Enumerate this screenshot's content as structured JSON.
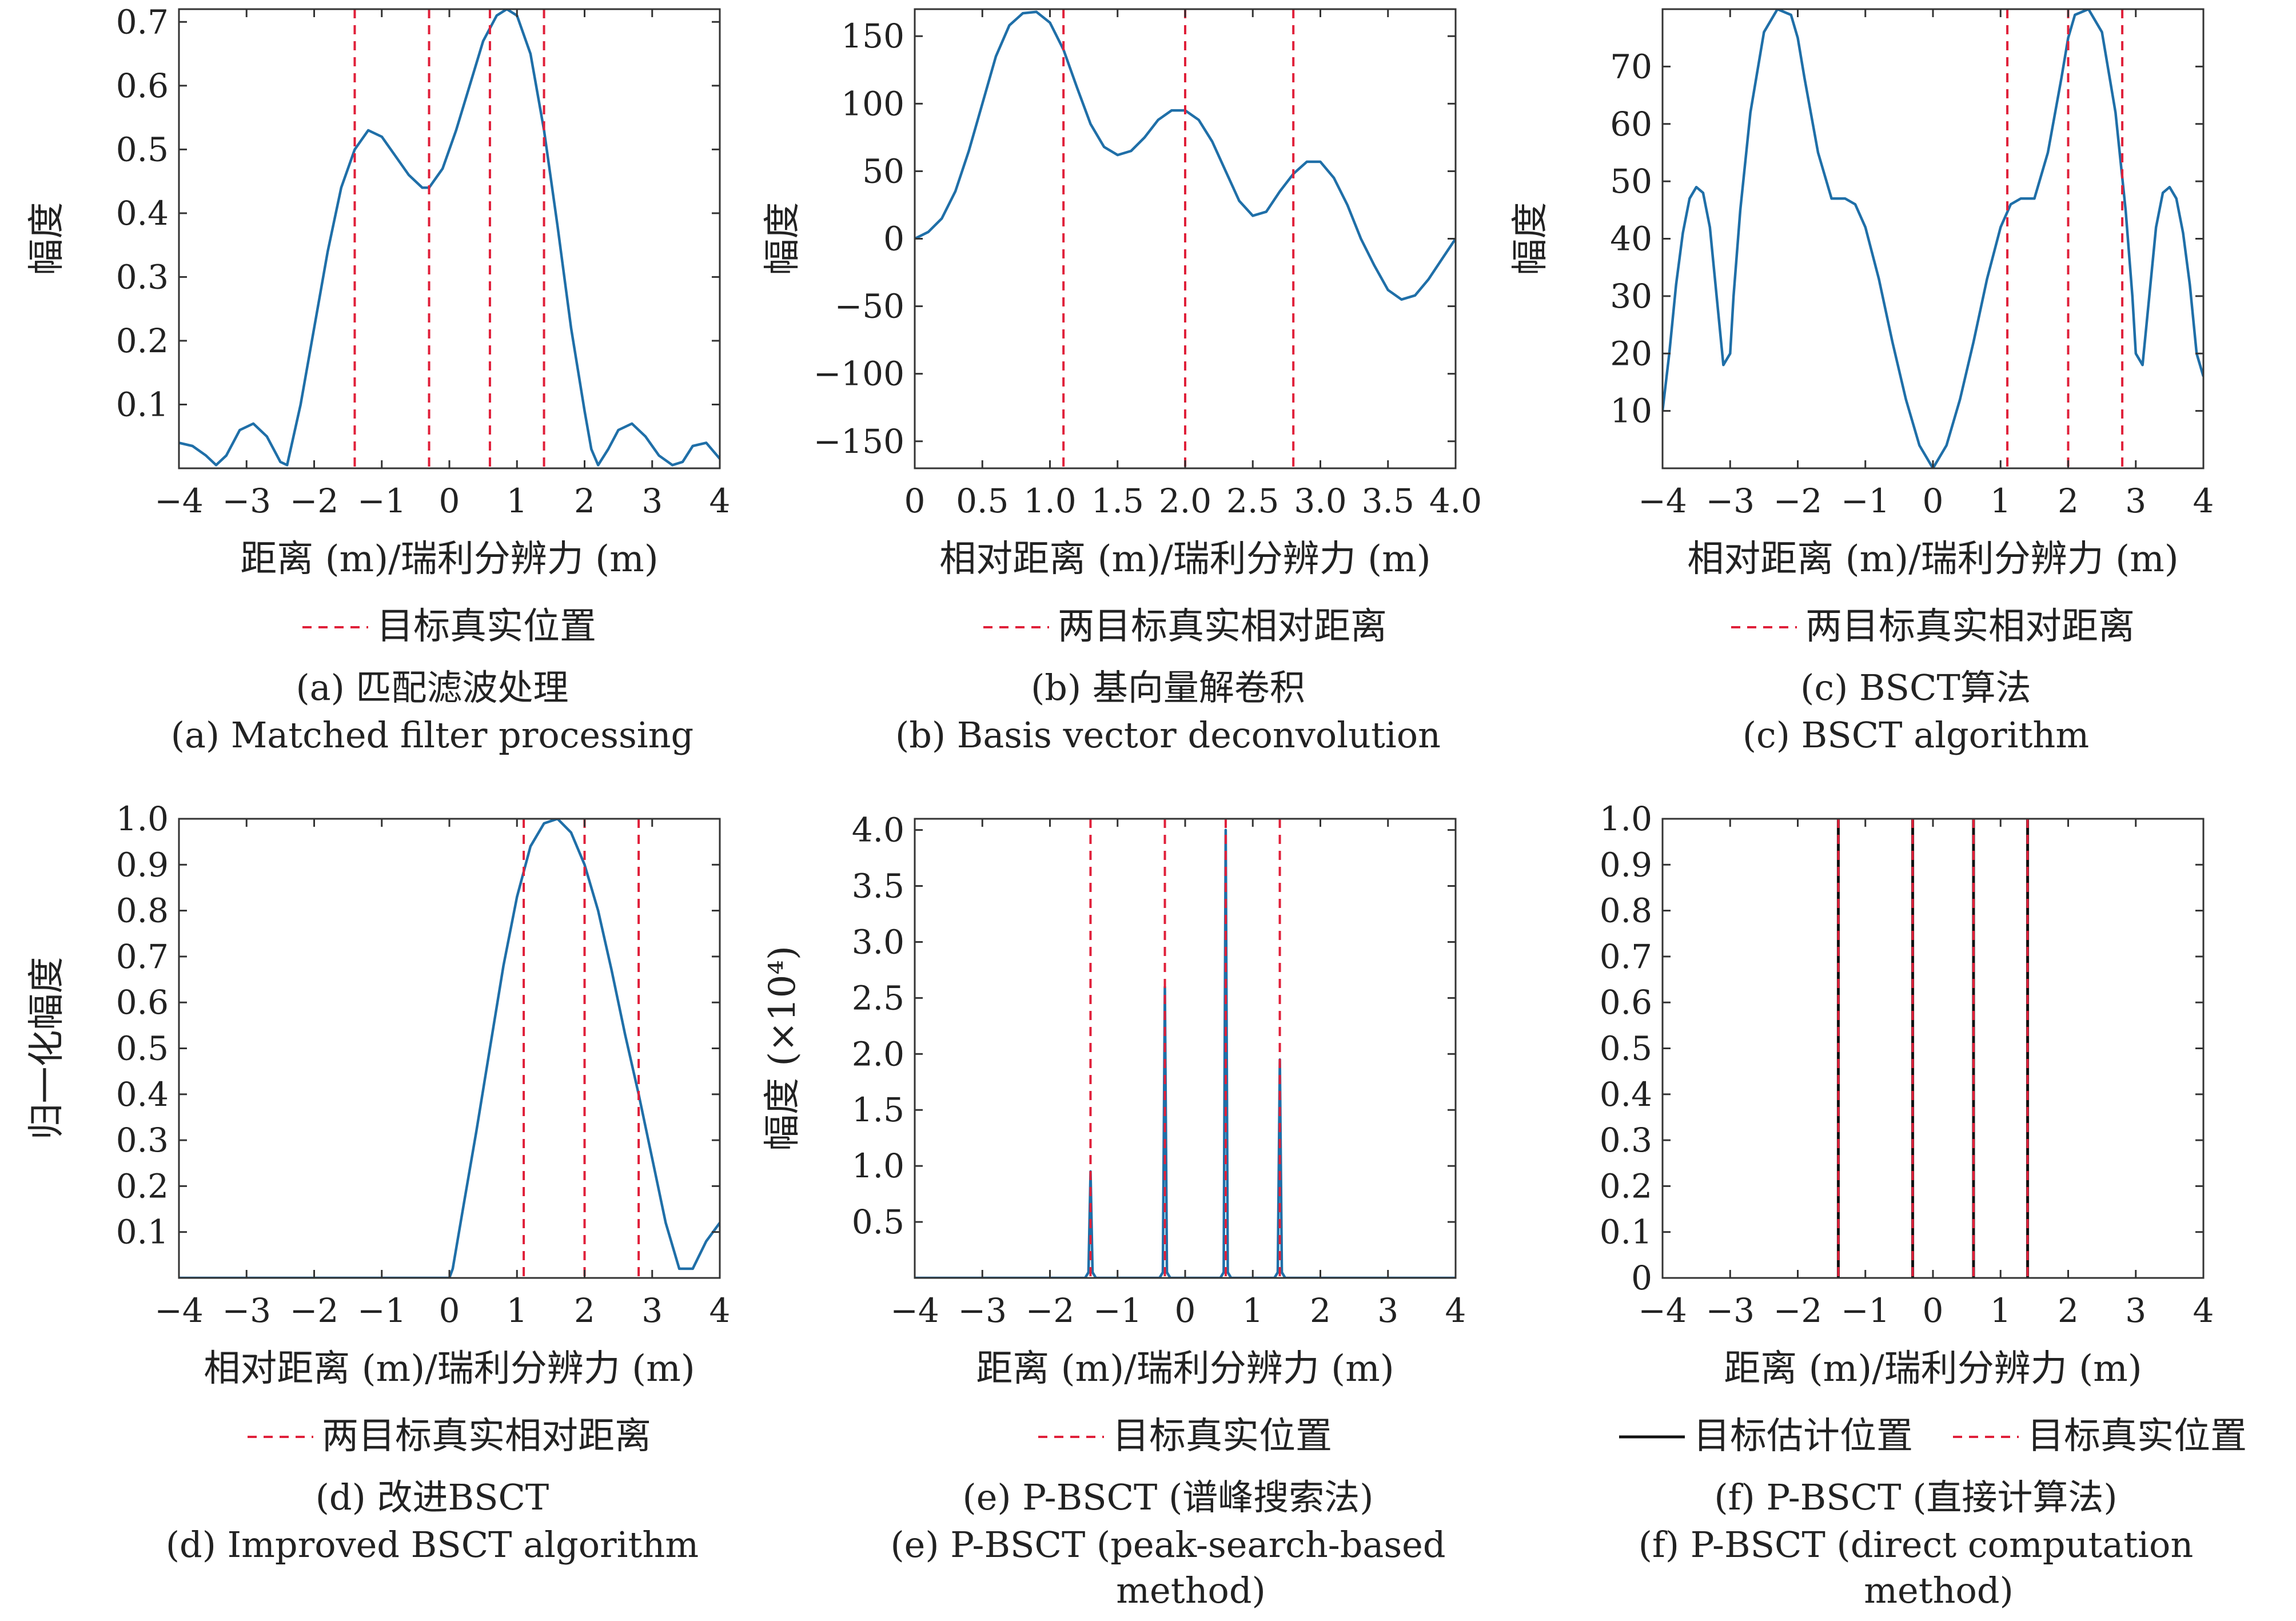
{
  "colors": {
    "line": "#1f6fa8",
    "truth": "#e0203a",
    "estimate": "#111111",
    "axis": "#333333"
  },
  "chart_data": [
    {
      "id": "a",
      "type": "line",
      "ylabel": "幅度",
      "xlabel": "距离 (m)/瑞利分辨力 (m)",
      "xlim": [
        -4,
        4
      ],
      "ylim": [
        0,
        0.72
      ],
      "xticks": [
        -4,
        -3,
        -2,
        -1,
        0,
        1,
        2,
        3,
        4
      ],
      "xtick_labels": [
        "−4",
        "−3",
        "−2",
        "−1",
        "0",
        "1",
        "2",
        "3",
        "4"
      ],
      "yticks": [
        0.1,
        0.2,
        0.3,
        0.4,
        0.5,
        0.6,
        0.7
      ],
      "ytick_labels": [
        "0.1",
        "0.2",
        "0.3",
        "0.4",
        "0.5",
        "0.6",
        "0.7"
      ],
      "series": [
        {
          "x": [
            -4,
            -3.8,
            -3.6,
            -3.45,
            -3.3,
            -3.1,
            -2.9,
            -2.7,
            -2.5,
            -2.4,
            -2.2,
            -2.0,
            -1.8,
            -1.6,
            -1.4,
            -1.2,
            -1.0,
            -0.8,
            -0.6,
            -0.4,
            -0.3,
            -0.1,
            0.1,
            0.3,
            0.5,
            0.7,
            0.85,
            1.0,
            1.2,
            1.4,
            1.6,
            1.8,
            2.0,
            2.1,
            2.2,
            2.35,
            2.5,
            2.7,
            2.9,
            3.1,
            3.3,
            3.45,
            3.6,
            3.8,
            4.0
          ],
          "y": [
            0.04,
            0.035,
            0.02,
            0.005,
            0.02,
            0.06,
            0.07,
            0.05,
            0.01,
            0.005,
            0.1,
            0.22,
            0.34,
            0.44,
            0.5,
            0.53,
            0.52,
            0.49,
            0.46,
            0.44,
            0.44,
            0.47,
            0.53,
            0.6,
            0.67,
            0.71,
            0.72,
            0.71,
            0.65,
            0.53,
            0.38,
            0.22,
            0.09,
            0.03,
            0.005,
            0.03,
            0.06,
            0.07,
            0.05,
            0.02,
            0.005,
            0.01,
            0.035,
            0.04,
            0.015
          ]
        }
      ],
      "vlines": [
        {
          "style": "truth",
          "x": [
            -1.4,
            -0.3,
            0.6,
            1.4
          ]
        }
      ],
      "legend": [
        {
          "style": "truth",
          "label": "目标真实位置"
        }
      ],
      "caption_cn": "(a) 匹配滤波处理",
      "caption_en": [
        "(a) Matched filter processing"
      ]
    },
    {
      "id": "b",
      "type": "line",
      "ylabel": "幅度",
      "xlabel": "相对距离 (m)/瑞利分辨力 (m)",
      "xlim": [
        0,
        4
      ],
      "ylim": [
        -170,
        170
      ],
      "xticks": [
        0,
        0.5,
        1,
        1.5,
        2,
        2.5,
        3,
        3.5,
        4
      ],
      "xtick_labels": [
        "0",
        "0.5",
        "1.0",
        "1.5",
        "2.0",
        "2.5",
        "3.0",
        "3.5",
        "4.0"
      ],
      "yticks": [
        -150,
        -100,
        -50,
        0,
        50,
        100,
        150
      ],
      "ytick_labels": [
        "−150",
        "−100",
        "−50",
        "0",
        "50",
        "100",
        "150"
      ],
      "series": [
        {
          "x": [
            0,
            0.1,
            0.2,
            0.3,
            0.4,
            0.5,
            0.6,
            0.7,
            0.8,
            0.9,
            1.0,
            1.1,
            1.2,
            1.3,
            1.4,
            1.5,
            1.6,
            1.7,
            1.8,
            1.9,
            2.0,
            2.1,
            2.2,
            2.3,
            2.4,
            2.5,
            2.6,
            2.7,
            2.8,
            2.9,
            3.0,
            3.1,
            3.2,
            3.3,
            3.4,
            3.5,
            3.6,
            3.7,
            3.8,
            3.9,
            4.0
          ],
          "y": [
            0,
            5,
            15,
            35,
            65,
            100,
            135,
            158,
            167,
            168,
            160,
            140,
            112,
            85,
            68,
            62,
            65,
            75,
            88,
            95,
            95,
            88,
            72,
            50,
            28,
            17,
            20,
            35,
            48,
            57,
            57,
            45,
            25,
            0,
            -20,
            -38,
            -45,
            -42,
            -30,
            -15,
            0
          ]
        }
      ],
      "vlines": [
        {
          "style": "truth",
          "x": [
            1.1,
            2.0,
            2.8
          ]
        }
      ],
      "legend": [
        {
          "style": "truth",
          "label": "两目标真实相对距离"
        }
      ],
      "caption_cn": "(b) 基向量解卷积",
      "caption_en": [
        "(b) Basis vector deconvolution"
      ]
    },
    {
      "id": "c",
      "type": "line",
      "ylabel": "幅度",
      "xlabel": "相对距离 (m)/瑞利分辨力 (m)",
      "xlim": [
        -4,
        4
      ],
      "ylim": [
        0,
        80
      ],
      "xticks": [
        -4,
        -3,
        -2,
        -1,
        0,
        1,
        2,
        3,
        4
      ],
      "xtick_labels": [
        "−4",
        "−3",
        "−2",
        "−1",
        "0",
        "1",
        "2",
        "3",
        "4"
      ],
      "yticks": [
        10,
        20,
        30,
        40,
        50,
        60,
        70
      ],
      "ytick_labels": [
        "10",
        "20",
        "30",
        "40",
        "50",
        "60",
        "70"
      ],
      "series": [
        {
          "x": [
            -4,
            -3.9,
            -3.8,
            -3.7,
            -3.6,
            -3.5,
            -3.4,
            -3.3,
            -3.2,
            -3.1,
            -3.0,
            -2.95,
            -2.85,
            -2.7,
            -2.5,
            -2.3,
            -2.1,
            -2.0,
            -1.9,
            -1.7,
            -1.5,
            -1.3,
            -1.15,
            -1.0,
            -0.8,
            -0.6,
            -0.4,
            -0.2,
            0.0,
            0.2,
            0.4,
            0.6,
            0.8,
            1.0,
            1.15,
            1.3,
            1.5,
            1.7,
            1.9,
            2.0,
            2.1,
            2.3,
            2.5,
            2.7,
            2.85,
            2.95,
            3.0,
            3.1,
            3.2,
            3.3,
            3.4,
            3.5,
            3.6,
            3.7,
            3.8,
            3.9,
            4.0
          ],
          "y": [
            10,
            20,
            32,
            41,
            47,
            49,
            48,
            42,
            30,
            18,
            20,
            30,
            45,
            62,
            76,
            80,
            79,
            75,
            68,
            55,
            47,
            47,
            46,
            42,
            33,
            22,
            12,
            4,
            0,
            4,
            12,
            22,
            33,
            42,
            46,
            47,
            47,
            55,
            68,
            75,
            79,
            80,
            76,
            62,
            45,
            30,
            20,
            18,
            30,
            42,
            48,
            49,
            47,
            41,
            32,
            20,
            16
          ]
        }
      ],
      "vlines": [
        {
          "style": "truth",
          "x": [
            1.1,
            2.0,
            2.8
          ]
        }
      ],
      "legend": [
        {
          "style": "truth",
          "label": "两目标真实相对距离"
        }
      ],
      "caption_cn": "(c) BSCT算法",
      "caption_en": [
        "(c) BSCT algorithm"
      ]
    },
    {
      "id": "d",
      "type": "line",
      "ylabel": "归一化幅度",
      "xlabel": "相对距离 (m)/瑞利分辨力 (m)",
      "xlim": [
        -4,
        4
      ],
      "ylim": [
        0,
        1.0
      ],
      "xticks": [
        -4,
        -3,
        -2,
        -1,
        0,
        1,
        2,
        3,
        4
      ],
      "xtick_labels": [
        "−4",
        "−3",
        "−2",
        "−1",
        "0",
        "1",
        "2",
        "3",
        "4"
      ],
      "yticks": [
        0.1,
        0.2,
        0.3,
        0.4,
        0.5,
        0.6,
        0.7,
        0.8,
        0.9,
        1.0
      ],
      "ytick_labels": [
        "0.1",
        "0.2",
        "0.3",
        "0.4",
        "0.5",
        "0.6",
        "0.7",
        "0.8",
        "0.9",
        "1.0"
      ],
      "series": [
        {
          "x": [
            -4,
            -2,
            0,
            0.05,
            0.2,
            0.4,
            0.6,
            0.8,
            1.0,
            1.2,
            1.4,
            1.6,
            1.8,
            2.0,
            2.2,
            2.4,
            2.6,
            2.8,
            3.0,
            3.2,
            3.4,
            3.6,
            3.8,
            4.0
          ],
          "y": [
            0,
            0,
            0,
            0.02,
            0.15,
            0.32,
            0.5,
            0.68,
            0.83,
            0.94,
            0.99,
            1.0,
            0.97,
            0.9,
            0.8,
            0.67,
            0.53,
            0.4,
            0.26,
            0.12,
            0.02,
            0.02,
            0.08,
            0.12
          ]
        }
      ],
      "vlines": [
        {
          "style": "truth",
          "x": [
            1.1,
            2.0,
            2.8
          ]
        }
      ],
      "legend": [
        {
          "style": "truth",
          "label": "两目标真实相对距离"
        }
      ],
      "caption_cn": "(d) 改进BSCT",
      "caption_en": [
        "(d) Improved BSCT algorithm"
      ]
    },
    {
      "id": "e",
      "type": "line",
      "ylabel": "幅度 (×10⁴)",
      "xlabel": "距离 (m)/瑞利分辨力 (m)",
      "xlim": [
        -4,
        4
      ],
      "ylim": [
        0,
        4.1
      ],
      "xticks": [
        -4,
        -3,
        -2,
        -1,
        0,
        1,
        2,
        3,
        4
      ],
      "xtick_labels": [
        "−4",
        "−3",
        "−2",
        "−1",
        "0",
        "1",
        "2",
        "3",
        "4"
      ],
      "yticks": [
        0.5,
        1.0,
        1.5,
        2.0,
        2.5,
        3.0,
        3.5,
        4.0
      ],
      "ytick_labels": [
        "0.5",
        "1.0",
        "1.5",
        "2.0",
        "2.5",
        "3.0",
        "3.5",
        "4.0"
      ],
      "series": [
        {
          "x": [
            -4,
            -1.48,
            -1.43,
            -1.4,
            -1.37,
            -1.32,
            -0.38,
            -0.33,
            -0.3,
            -0.27,
            -0.22,
            0.52,
            0.57,
            0.6,
            0.63,
            0.68,
            1.32,
            1.37,
            1.4,
            1.43,
            1.48,
            4.0
          ],
          "y": [
            0,
            0,
            0.05,
            0.95,
            0.05,
            0,
            0,
            0.05,
            2.6,
            0.05,
            0,
            0,
            0.05,
            4.0,
            0.05,
            0,
            0,
            0.05,
            1.95,
            0.05,
            0,
            0
          ]
        }
      ],
      "vlines": [
        {
          "style": "truth",
          "x": [
            -1.4,
            -0.3,
            0.6,
            1.4
          ]
        }
      ],
      "legend": [
        {
          "style": "truth",
          "label": "目标真实位置"
        }
      ],
      "caption_cn": "(e) P-BSCT (谱峰搜索法)",
      "caption_en": [
        "(e) P-BSCT (peak-search-based",
        "method)"
      ]
    },
    {
      "id": "f",
      "type": "line",
      "ylabel": "",
      "xlabel": "距离 (m)/瑞利分辨力 (m)",
      "xlim": [
        -4,
        4
      ],
      "ylim": [
        0,
        1.0
      ],
      "xticks": [
        -4,
        -3,
        -2,
        -1,
        0,
        1,
        2,
        3,
        4
      ],
      "xtick_labels": [
        "−4",
        "−3",
        "−2",
        "−1",
        "0",
        "1",
        "2",
        "3",
        "4"
      ],
      "yticks": [
        0,
        0.1,
        0.2,
        0.3,
        0.4,
        0.5,
        0.6,
        0.7,
        0.8,
        0.9,
        1.0
      ],
      "ytick_labels": [
        "0",
        "0.1",
        "0.2",
        "0.3",
        "0.4",
        "0.5",
        "0.6",
        "0.7",
        "0.8",
        "0.9",
        "1.0"
      ],
      "series": [],
      "vlines": [
        {
          "style": "estimate",
          "x": [
            -1.4,
            -0.3,
            0.6,
            1.4
          ]
        },
        {
          "style": "truth",
          "x": [
            -1.4,
            -0.3,
            0.6,
            1.4
          ]
        }
      ],
      "legend": [
        {
          "style": "estimate",
          "label": "目标估计位置"
        },
        {
          "style": "truth",
          "label": "目标真实位置"
        }
      ],
      "caption_cn": "(f) P-BSCT (直接计算法)",
      "caption_en": [
        "(f) P-BSCT (direct computation",
        "method)"
      ]
    }
  ]
}
